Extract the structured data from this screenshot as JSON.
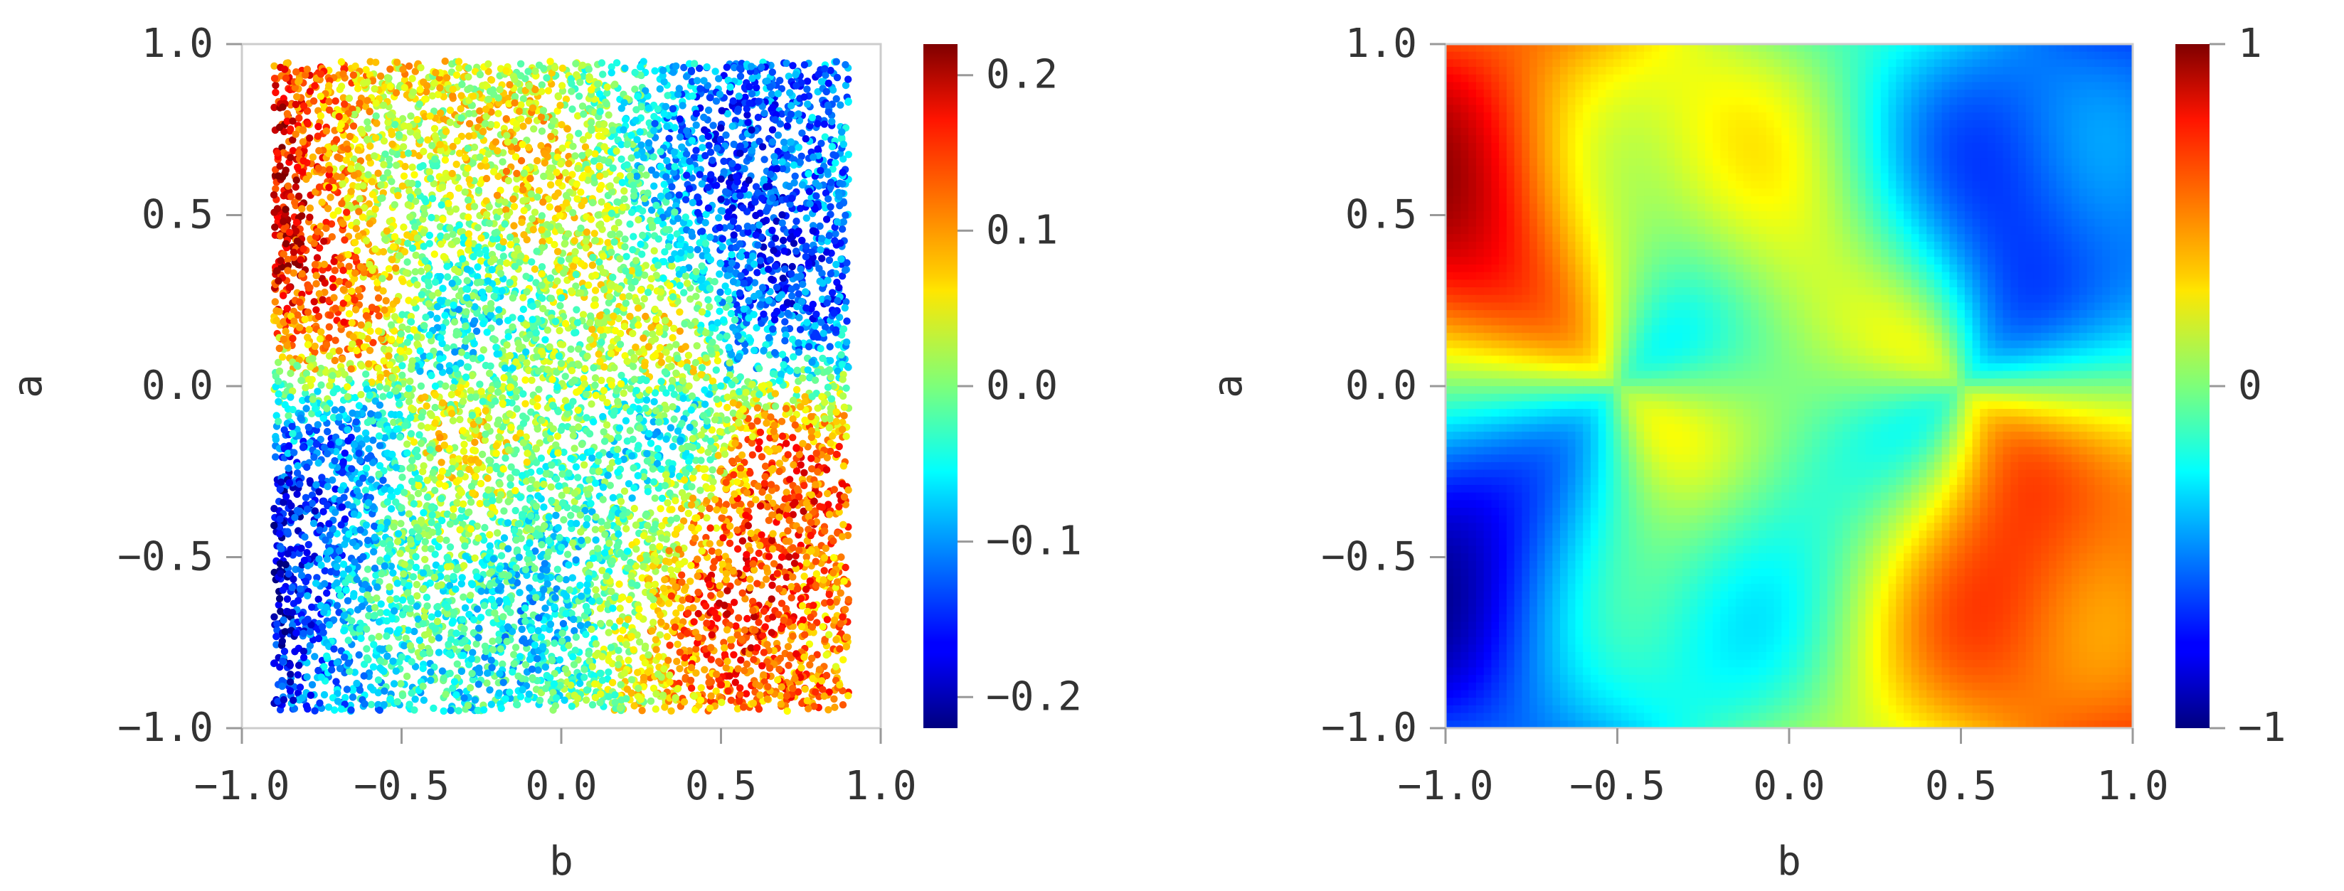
{
  "chart_data": [
    {
      "type": "scatter",
      "title": "",
      "xlabel": "b",
      "ylabel": "a",
      "xlim": [
        -1.0,
        1.0
      ],
      "ylim": [
        -1.0,
        1.0
      ],
      "x_ticks": [
        "−1.0",
        "−0.5",
        "0.0",
        "0.5",
        "1.0"
      ],
      "y_ticks": [
        "1.0",
        "0.5",
        "0.0",
        "−0.5",
        "−1.0"
      ],
      "x_tick_values": [
        -1.0,
        -0.5,
        0.0,
        0.5,
        1.0
      ],
      "y_tick_values": [
        1.0,
        0.5,
        0.0,
        -0.5,
        -1.0
      ],
      "colormap": "jet",
      "colorbar": {
        "range": [
          -0.22,
          0.22
        ],
        "tick_values": [
          0.2,
          0.1,
          0.0,
          -0.1,
          -0.2
        ],
        "tick_labels": [
          "0.2",
          "0.1",
          "0.0",
          "−0.1",
          "−0.2"
        ]
      },
      "points_extent": {
        "b": [
          -0.9,
          0.9
        ],
        "a": [
          -0.95,
          0.95
        ]
      },
      "point_color": "value of a color field with crossing bands meeting at (b=±0.5, a=0), range about −0.2 to 0.2",
      "grid": false
    },
    {
      "type": "heatmap",
      "title": "",
      "xlabel": "b",
      "ylabel": "a",
      "xlim": [
        -1.0,
        1.0
      ],
      "ylim": [
        -1.0,
        1.0
      ],
      "x_ticks": [
        "−1.0",
        "−0.5",
        "0.0",
        "0.5",
        "1.0"
      ],
      "y_ticks": [
        "1.0",
        "0.5",
        "0.0",
        "−0.5",
        "−1.0"
      ],
      "x_tick_values": [
        -1.0,
        -0.5,
        0.0,
        0.5,
        1.0
      ],
      "y_tick_values": [
        1.0,
        0.5,
        0.0,
        -0.5,
        -1.0
      ],
      "colormap": "jet",
      "colorbar": {
        "range": [
          -1,
          1
        ],
        "tick_values": [
          1,
          0,
          -1
        ],
        "tick_labels": [
          "1",
          "0",
          "−1"
        ]
      },
      "field_description": "smooth field with singular points at (b=−0.5, a=0) and (b=0.5, a=0); positive lobes toward upper-left and lower-right, negative toward lower-left and upper-right",
      "grid": false
    }
  ]
}
